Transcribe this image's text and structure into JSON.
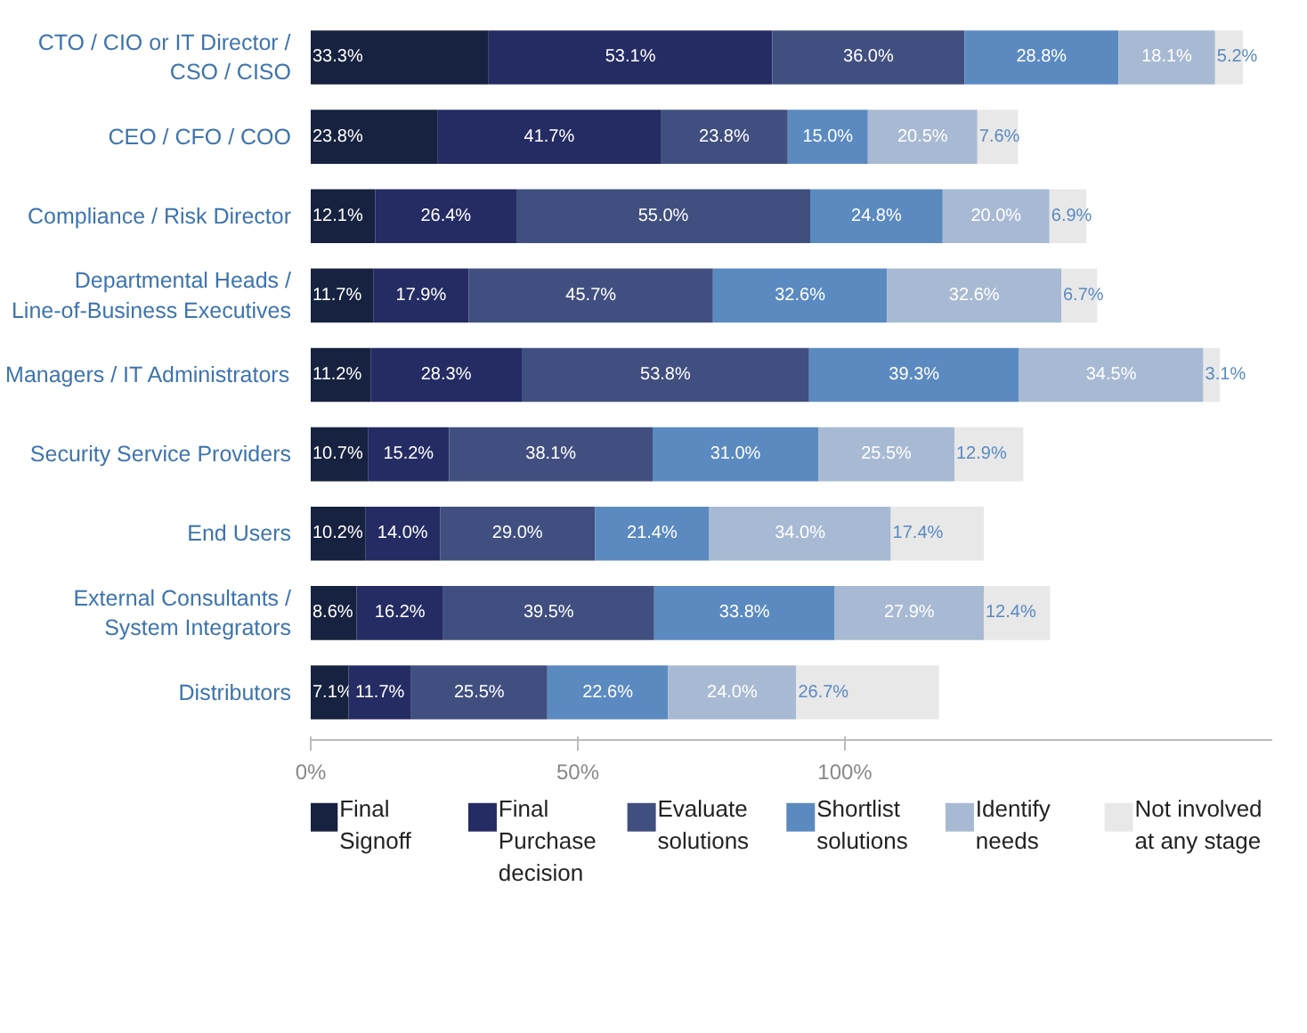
{
  "chart_data": {
    "type": "bar",
    "orientation": "horizontal",
    "stacked": true,
    "categories": [
      "CTO / CIO or IT Director / CSO / CISO",
      "CEO / CFO / COO",
      "Compliance / Risk Director",
      "Departmental Heads / Line-of-Business Executives",
      "Managers / IT Administrators",
      "Security Service Providers",
      "End Users",
      "External Consultants / System Integrators",
      "Distributors"
    ],
    "xlim": [
      0,
      180
    ],
    "xticks": [
      {
        "value": 0,
        "label": "0%"
      },
      {
        "value": 50,
        "label": "50%"
      },
      {
        "value": 100,
        "label": "100%"
      }
    ],
    "grid": false,
    "legend": "bottom",
    "series": [
      {
        "name": "Final Signoff",
        "color": "#16223f",
        "values": [
          33.3,
          23.8,
          12.1,
          11.7,
          11.2,
          10.7,
          10.2,
          8.6,
          7.1
        ],
        "value_labels": [
          "33.3%",
          "23.8%",
          "12.1%",
          "11.7%",
          "11.2%",
          "10.7%",
          "10.2%",
          "8.6%",
          "7.1%"
        ]
      },
      {
        "name": "Final Purchase decision",
        "color": "#242c63",
        "values": [
          53.1,
          41.7,
          26.4,
          17.9,
          28.3,
          15.2,
          14.0,
          16.2,
          11.7
        ],
        "value_labels": [
          "53.1%",
          "41.7%",
          "26.4%",
          "17.9%",
          "28.3%",
          "15.2%",
          "14.0%",
          "16.2%",
          "11.7%"
        ]
      },
      {
        "name": "Evaluate solutions",
        "color": "#404f7f",
        "values": [
          36.0,
          23.8,
          55.0,
          45.7,
          53.8,
          38.1,
          29.0,
          39.5,
          25.5
        ],
        "value_labels": [
          "36.0%",
          "23.8%",
          "55.0%",
          "45.7%",
          "53.8%",
          "38.1%",
          "29.0%",
          "39.5%",
          "25.5%"
        ]
      },
      {
        "name": "Shortlist solutions",
        "color": "#5b8ac0",
        "values": [
          28.8,
          15.0,
          24.8,
          32.6,
          39.3,
          31.0,
          21.4,
          33.8,
          22.6
        ],
        "value_labels": [
          "28.8%",
          "15.0%",
          "24.8%",
          "32.6%",
          "39.3%",
          "31.0%",
          "21.4%",
          "33.8%",
          "22.6%"
        ]
      },
      {
        "name": "Identify needs",
        "color": "#a8bad3",
        "values": [
          18.1,
          20.5,
          20.0,
          32.6,
          34.5,
          25.5,
          34.0,
          27.9,
          24.0
        ],
        "value_labels": [
          "18.1%",
          "20.5%",
          "20.0%",
          "32.6%",
          "34.5%",
          "25.5%",
          "34.0%",
          "27.9%",
          "24.0%"
        ]
      },
      {
        "name": "Not involved at any stage",
        "color": "#e8e8e8",
        "values": [
          5.2,
          7.6,
          6.9,
          6.7,
          3.1,
          12.9,
          17.4,
          12.4,
          26.7
        ],
        "value_labels": [
          "5.2%",
          "7.6%",
          "6.9%",
          "6.7%",
          "3.1%",
          "12.9%",
          "17.4%",
          "12.4%",
          "26.7%"
        ]
      }
    ]
  }
}
